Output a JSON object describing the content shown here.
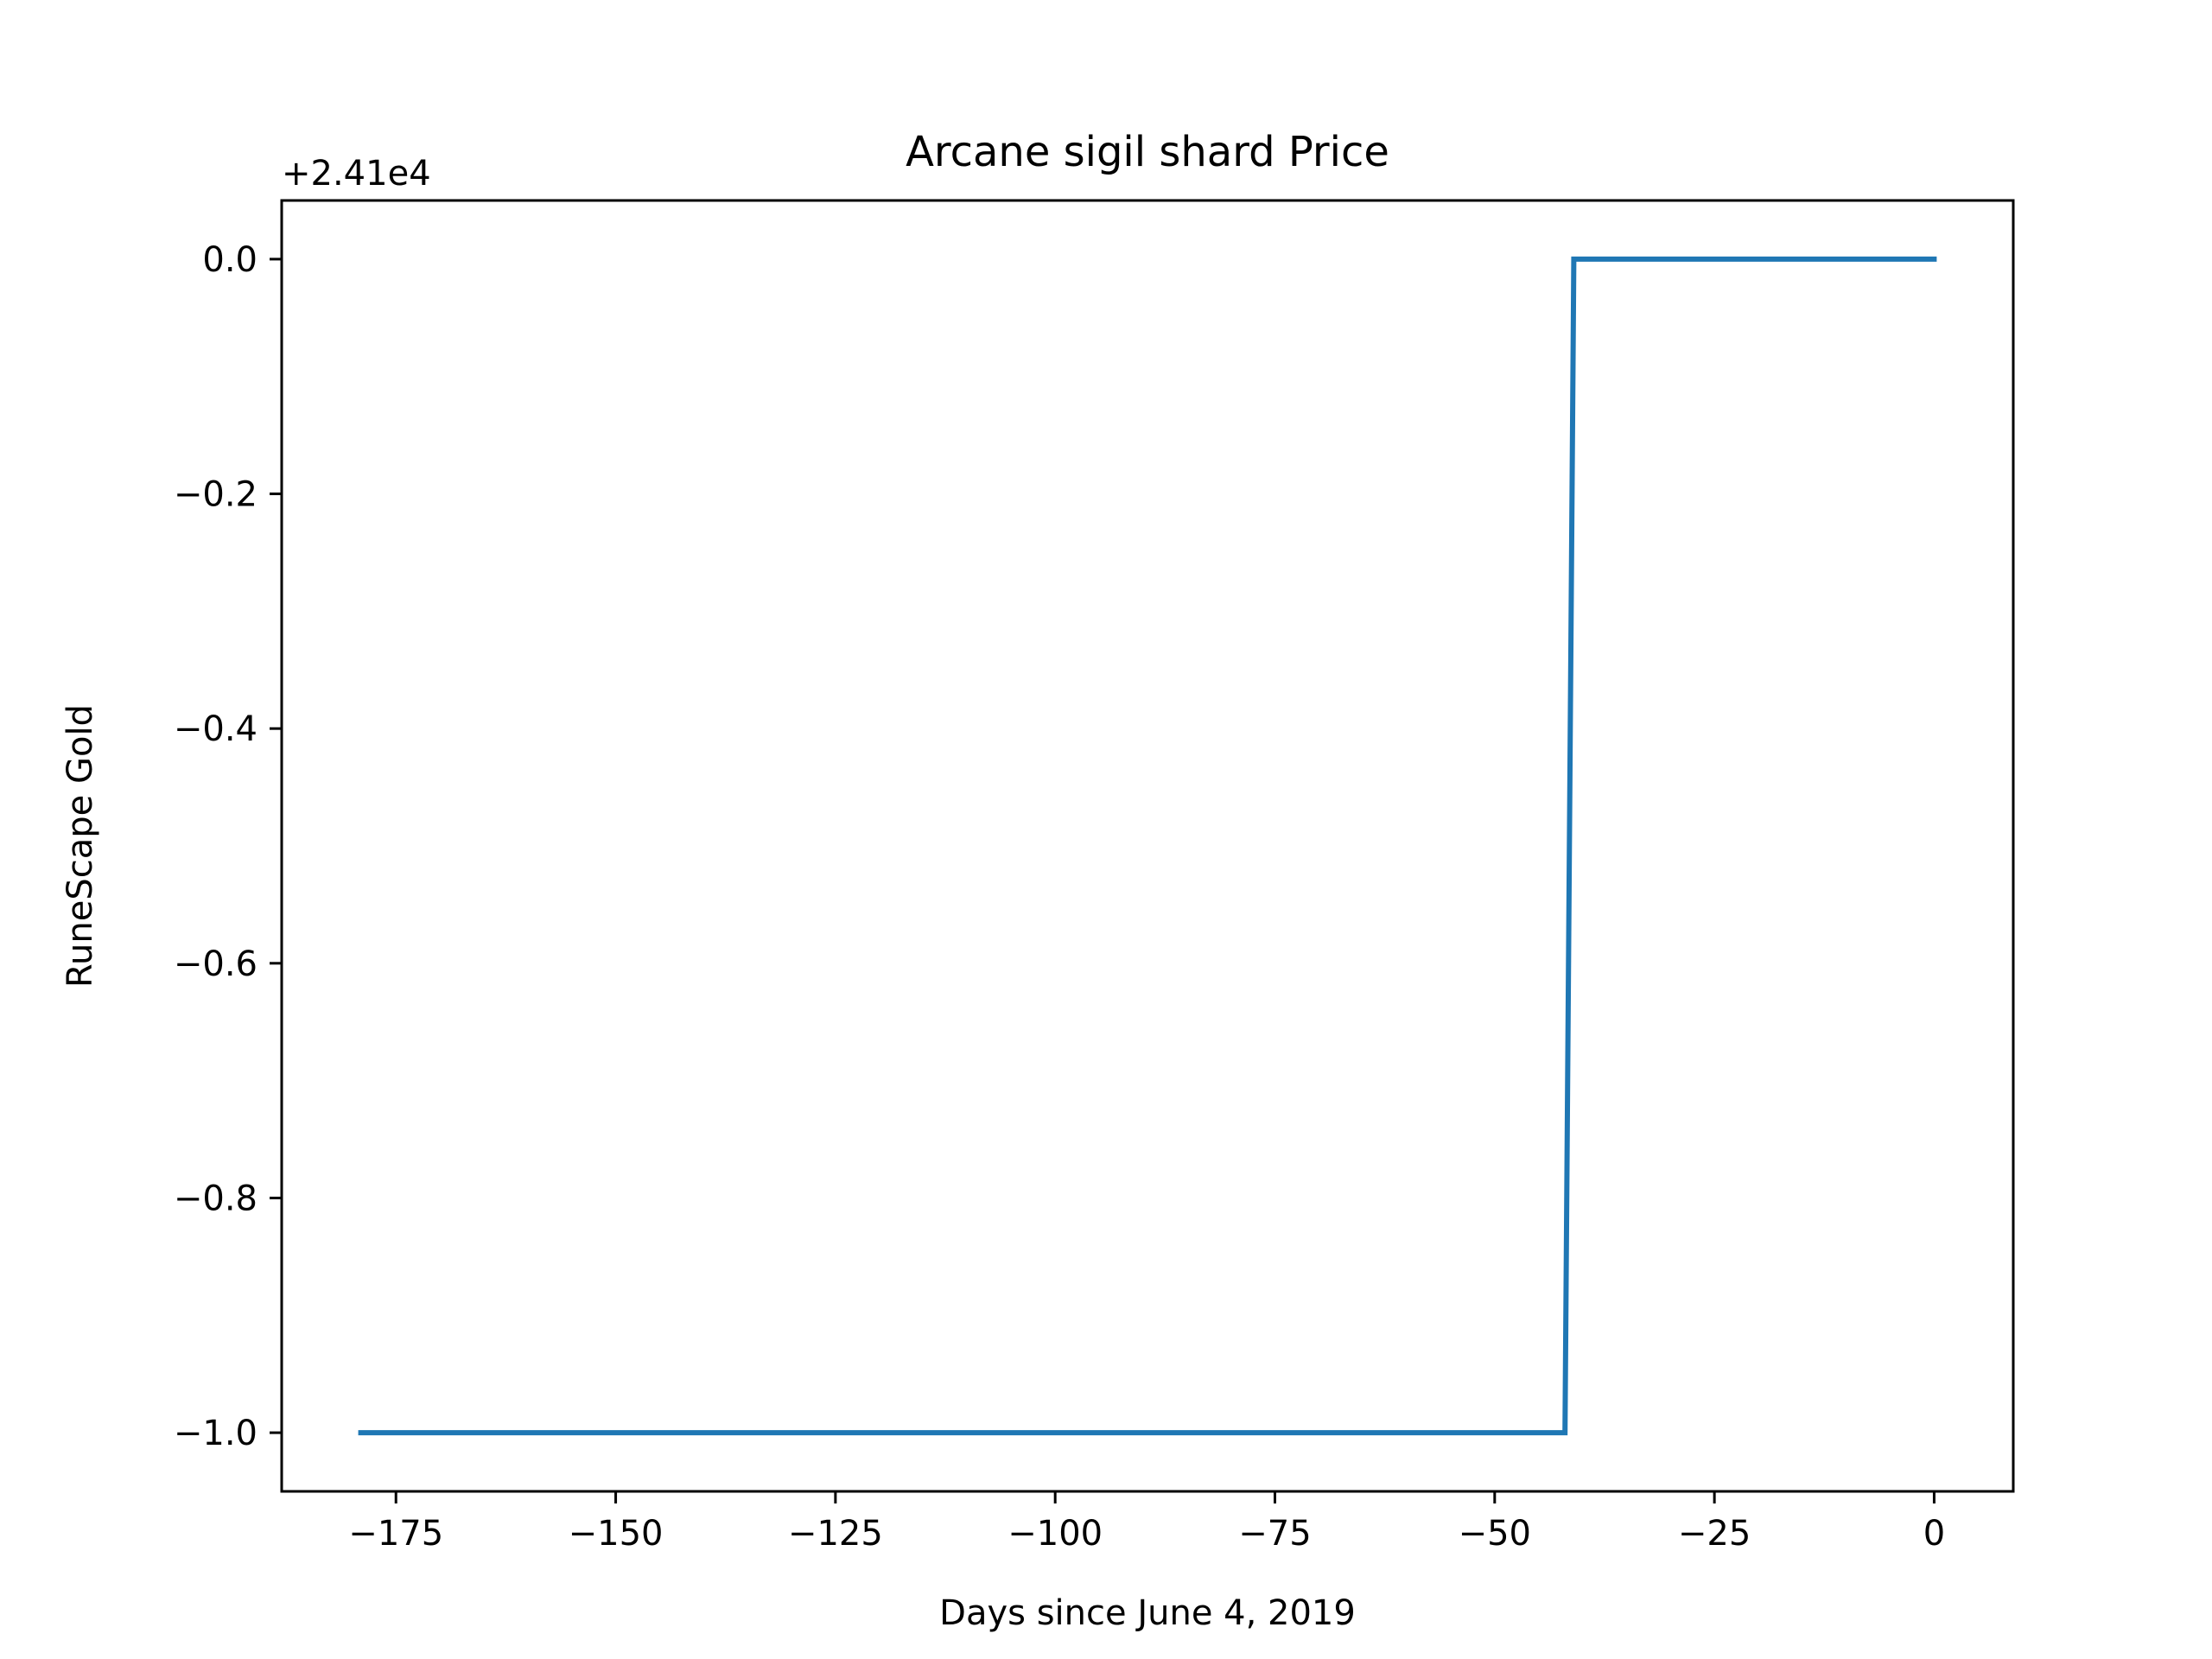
{
  "chart_data": {
    "type": "line",
    "title": "Arcane sigil shard Price",
    "xlabel": "Days since June 4, 2019",
    "ylabel": "RuneScape Gold",
    "offset_label": "+2.41e4",
    "xlim": [
      -188,
      9
    ],
    "ylim": [
      -1.05,
      0.05
    ],
    "x_ticks": [
      -175,
      -150,
      -125,
      -100,
      -75,
      -50,
      -25,
      0
    ],
    "x_tick_labels": [
      "−175",
      "−150",
      "−125",
      "−100",
      "−75",
      "−50",
      "−25",
      "0"
    ],
    "y_ticks": [
      0.0,
      -0.2,
      -0.4,
      -0.6,
      -0.8,
      -1.0
    ],
    "y_tick_labels": [
      "0.0",
      "−0.2",
      "−0.4",
      "−0.6",
      "−0.8",
      "−1.0"
    ],
    "grid": false,
    "series": [
      {
        "color": "#1f77b4",
        "x": [
          -179,
          -42,
          -41,
          0
        ],
        "y": [
          -1.0,
          -1.0,
          0.0,
          0.0
        ]
      }
    ]
  }
}
